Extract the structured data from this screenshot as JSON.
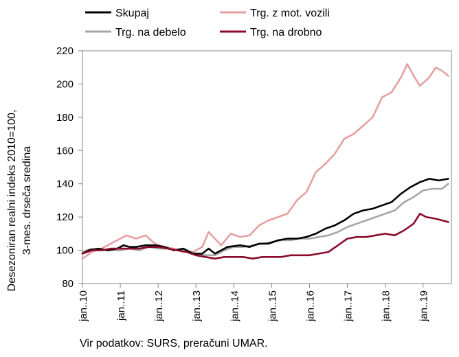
{
  "chart_data": {
    "type": "line",
    "title": "",
    "ylabel_lines": [
      "Desezoniran realni indeks 2010=100,",
      "3-mes. drseča sredina"
    ],
    "xlabel": "",
    "ylim": [
      80,
      220
    ],
    "yticks": [
      80,
      100,
      120,
      140,
      160,
      180,
      200,
      220
    ],
    "x_start": "2010-01",
    "x_end": "2019-10",
    "xtick_labels": [
      "jan..10",
      "jan..11",
      "jan..12",
      "jan..13",
      "jan..14",
      "jan..15",
      "jan..16",
      "jan..17",
      "jan..18",
      "jan..19"
    ],
    "legend_placement": "top",
    "series": [
      {
        "name": "Skupaj",
        "color": "#000000",
        "points": [
          [
            "2010-01",
            98
          ],
          [
            "2010-03",
            100
          ],
          [
            "2010-06",
            101
          ],
          [
            "2010-09",
            100
          ],
          [
            "2010-12",
            101
          ],
          [
            "2011-02",
            103
          ],
          [
            "2011-04",
            102
          ],
          [
            "2011-06",
            102
          ],
          [
            "2011-09",
            103
          ],
          [
            "2011-12",
            103
          ],
          [
            "2012-03",
            102
          ],
          [
            "2012-06",
            100
          ],
          [
            "2012-09",
            101
          ],
          [
            "2012-12",
            98
          ],
          [
            "2013-03",
            98
          ],
          [
            "2013-05",
            101
          ],
          [
            "2013-07",
            98
          ],
          [
            "2013-09",
            100
          ],
          [
            "2013-11",
            102
          ],
          [
            "2014-03",
            103
          ],
          [
            "2014-06",
            102
          ],
          [
            "2014-09",
            104
          ],
          [
            "2014-12",
            104
          ],
          [
            "2015-03",
            106
          ],
          [
            "2015-06",
            107
          ],
          [
            "2015-09",
            107
          ],
          [
            "2015-12",
            108
          ],
          [
            "2016-03",
            110
          ],
          [
            "2016-06",
            113
          ],
          [
            "2016-09",
            115
          ],
          [
            "2016-12",
            118
          ],
          [
            "2017-03",
            122
          ],
          [
            "2017-06",
            124
          ],
          [
            "2017-09",
            125
          ],
          [
            "2017-12",
            127
          ],
          [
            "2018-03",
            129
          ],
          [
            "2018-06",
            134
          ],
          [
            "2018-09",
            138
          ],
          [
            "2018-12",
            141
          ],
          [
            "2019-03",
            143
          ],
          [
            "2019-06",
            142
          ],
          [
            "2019-09",
            143
          ]
        ]
      },
      {
        "name": "Trg. z mot. vozili",
        "color": "#e4a0a1",
        "points": [
          [
            "2010-01",
            95
          ],
          [
            "2010-04",
            99
          ],
          [
            "2010-07",
            101
          ],
          [
            "2010-10",
            104
          ],
          [
            "2010-12",
            106
          ],
          [
            "2011-03",
            109
          ],
          [
            "2011-06",
            107
          ],
          [
            "2011-09",
            109
          ],
          [
            "2011-12",
            104
          ],
          [
            "2012-03",
            102
          ],
          [
            "2012-06",
            101
          ],
          [
            "2012-09",
            99
          ],
          [
            "2012-12",
            99
          ],
          [
            "2013-03",
            102
          ],
          [
            "2013-05",
            111
          ],
          [
            "2013-07",
            107
          ],
          [
            "2013-09",
            103
          ],
          [
            "2013-12",
            110
          ],
          [
            "2014-03",
            108
          ],
          [
            "2014-06",
            109
          ],
          [
            "2014-09",
            115
          ],
          [
            "2014-12",
            118
          ],
          [
            "2015-03",
            120
          ],
          [
            "2015-06",
            122
          ],
          [
            "2015-09",
            130
          ],
          [
            "2015-12",
            135
          ],
          [
            "2016-03",
            147
          ],
          [
            "2016-06",
            152
          ],
          [
            "2016-09",
            158
          ],
          [
            "2016-12",
            167
          ],
          [
            "2017-03",
            170
          ],
          [
            "2017-06",
            175
          ],
          [
            "2017-09",
            180
          ],
          [
            "2017-12",
            192
          ],
          [
            "2018-03",
            195
          ],
          [
            "2018-06",
            204
          ],
          [
            "2018-08",
            212
          ],
          [
            "2018-10",
            205
          ],
          [
            "2018-12",
            199
          ],
          [
            "2019-03",
            204
          ],
          [
            "2019-05",
            210
          ],
          [
            "2019-07",
            208
          ],
          [
            "2019-09",
            205
          ]
        ]
      },
      {
        "name": "Trg. na debelo",
        "color": "#a6a6a6",
        "points": [
          [
            "2010-01",
            99
          ],
          [
            "2010-04",
            101
          ],
          [
            "2010-07",
            100
          ],
          [
            "2010-10",
            100
          ],
          [
            "2011-01",
            100
          ],
          [
            "2011-04",
            101
          ],
          [
            "2011-07",
            100
          ],
          [
            "2011-10",
            102
          ],
          [
            "2012-01",
            101
          ],
          [
            "2012-04",
            101
          ],
          [
            "2012-07",
            100
          ],
          [
            "2012-10",
            100
          ],
          [
            "2013-01",
            98
          ],
          [
            "2013-04",
            97
          ],
          [
            "2013-07",
            97
          ],
          [
            "2013-10",
            100
          ],
          [
            "2014-01",
            102
          ],
          [
            "2014-04",
            102
          ],
          [
            "2014-07",
            103
          ],
          [
            "2014-10",
            104
          ],
          [
            "2015-01",
            105
          ],
          [
            "2015-04",
            106
          ],
          [
            "2015-07",
            106
          ],
          [
            "2015-10",
            107
          ],
          [
            "2016-01",
            107
          ],
          [
            "2016-04",
            108
          ],
          [
            "2016-07",
            109
          ],
          [
            "2016-10",
            111
          ],
          [
            "2017-01",
            114
          ],
          [
            "2017-04",
            116
          ],
          [
            "2017-07",
            118
          ],
          [
            "2017-10",
            120
          ],
          [
            "2018-01",
            122
          ],
          [
            "2018-04",
            124
          ],
          [
            "2018-07",
            129
          ],
          [
            "2018-10",
            132
          ],
          [
            "2019-01",
            136
          ],
          [
            "2019-04",
            137
          ],
          [
            "2019-07",
            137
          ],
          [
            "2019-09",
            140
          ]
        ]
      },
      {
        "name": "Trg. na drobno",
        "color": "#8b0a2a",
        "points": [
          [
            "2010-01",
            98
          ],
          [
            "2010-04",
            100
          ],
          [
            "2010-07",
            100
          ],
          [
            "2010-10",
            101
          ],
          [
            "2011-01",
            101
          ],
          [
            "2011-04",
            101
          ],
          [
            "2011-07",
            101
          ],
          [
            "2011-10",
            102
          ],
          [
            "2012-01",
            102
          ],
          [
            "2012-04",
            101
          ],
          [
            "2012-07",
            100
          ],
          [
            "2012-10",
            99
          ],
          [
            "2013-01",
            97
          ],
          [
            "2013-04",
            96
          ],
          [
            "2013-07",
            95
          ],
          [
            "2013-10",
            96
          ],
          [
            "2014-01",
            96
          ],
          [
            "2014-04",
            96
          ],
          [
            "2014-07",
            95
          ],
          [
            "2014-10",
            96
          ],
          [
            "2015-01",
            96
          ],
          [
            "2015-04",
            96
          ],
          [
            "2015-07",
            97
          ],
          [
            "2015-10",
            97
          ],
          [
            "2016-01",
            97
          ],
          [
            "2016-04",
            98
          ],
          [
            "2016-07",
            99
          ],
          [
            "2016-10",
            103
          ],
          [
            "2017-01",
            107
          ],
          [
            "2017-04",
            108
          ],
          [
            "2017-07",
            108
          ],
          [
            "2017-10",
            109
          ],
          [
            "2018-01",
            110
          ],
          [
            "2018-04",
            109
          ],
          [
            "2018-07",
            112
          ],
          [
            "2018-10",
            116
          ],
          [
            "2018-12",
            122
          ],
          [
            "2019-02",
            120
          ],
          [
            "2019-05",
            119
          ],
          [
            "2019-07",
            118
          ],
          [
            "2019-09",
            117
          ]
        ]
      }
    ],
    "source": "Vir podatkov: SURS, preračuni UMAR."
  }
}
